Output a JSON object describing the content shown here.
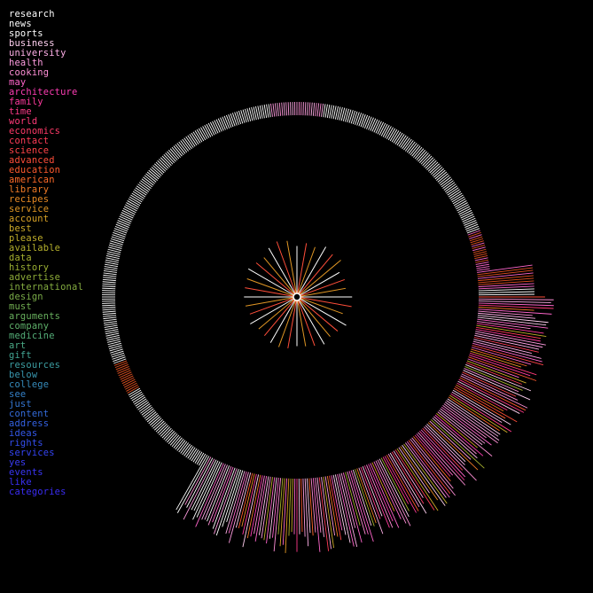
{
  "legend": {
    "items": [
      {
        "label": "research",
        "color": "#ffffff"
      },
      {
        "label": "news",
        "color": "#ffffff"
      },
      {
        "label": "sports",
        "color": "#ffffff"
      },
      {
        "label": "business",
        "color": "#ffd0f0"
      },
      {
        "label": "university",
        "color": "#ffb0e8"
      },
      {
        "label": "health",
        "color": "#ff9ce0"
      },
      {
        "label": "cooking",
        "color": "#ff8fd6"
      },
      {
        "label": "may",
        "color": "#ff66cc"
      },
      {
        "label": "architecture",
        "color": "#ff3db5"
      },
      {
        "label": "family",
        "color": "#ff3a9e"
      },
      {
        "label": "time",
        "color": "#ff3a8a"
      },
      {
        "label": "world",
        "color": "#ff3a78"
      },
      {
        "label": "economics",
        "color": "#ff3a68"
      },
      {
        "label": "contact",
        "color": "#ff3c57"
      },
      {
        "label": "science",
        "color": "#ff4448"
      },
      {
        "label": "advanced",
        "color": "#ff4e3a"
      },
      {
        "label": "education",
        "color": "#ff5a2e"
      },
      {
        "label": "american",
        "color": "#ff6a28"
      },
      {
        "label": "library",
        "color": "#f07a26"
      },
      {
        "label": "recipes",
        "color": "#e88a24"
      },
      {
        "label": "service",
        "color": "#e09624"
      },
      {
        "label": "account",
        "color": "#d8a226"
      },
      {
        "label": "best",
        "color": "#ccaa28"
      },
      {
        "label": "please",
        "color": "#c0ae2a"
      },
      {
        "label": "available",
        "color": "#b4b02c"
      },
      {
        "label": "data",
        "color": "#a6b02e"
      },
      {
        "label": "history",
        "color": "#9aae32"
      },
      {
        "label": "advertise",
        "color": "#8eac38"
      },
      {
        "label": "international",
        "color": "#84ac40"
      },
      {
        "label": "design",
        "color": "#7aac48"
      },
      {
        "label": "must",
        "color": "#72ae52"
      },
      {
        "label": "arguments",
        "color": "#68b05e"
      },
      {
        "label": "company",
        "color": "#5eb06a"
      },
      {
        "label": "medicine",
        "color": "#54ae78"
      },
      {
        "label": "art",
        "color": "#4aaa86"
      },
      {
        "label": "gift",
        "color": "#42a694"
      },
      {
        "label": "resources",
        "color": "#3c9ea2"
      },
      {
        "label": "below",
        "color": "#3896ae"
      },
      {
        "label": "college",
        "color": "#368cbc"
      },
      {
        "label": "see",
        "color": "#3480c8"
      },
      {
        "label": "just",
        "color": "#3476d2"
      },
      {
        "label": "content",
        "color": "#346cdc"
      },
      {
        "label": "address",
        "color": "#3462e4"
      },
      {
        "label": "ideas",
        "color": "#3458ea"
      },
      {
        "label": "rights",
        "color": "#344ef0"
      },
      {
        "label": "services",
        "color": "#3444f4"
      },
      {
        "label": "yes",
        "color": "#3a3cf6"
      },
      {
        "label": "events",
        "color": "#3a36f6"
      },
      {
        "label": "like",
        "color": "#3a30f6"
      },
      {
        "label": "categories",
        "color": "#3a2cf4"
      }
    ]
  },
  "colors": {
    "background": "#000000",
    "ring_default": "#ffffff"
  }
}
